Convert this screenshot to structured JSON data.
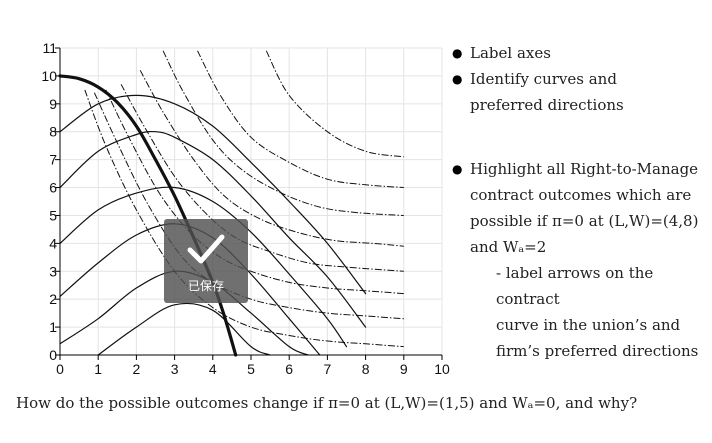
{
  "chart_data": {
    "type": "line",
    "title": "",
    "xlabel": "",
    "ylabel": "",
    "xlim": [
      0,
      10
    ],
    "ylim": [
      0,
      11
    ],
    "x_ticks": [
      0,
      1,
      2,
      3,
      4,
      5,
      6,
      7,
      8,
      9,
      10
    ],
    "y_ticks": [
      0,
      1,
      2,
      3,
      4,
      5,
      6,
      7,
      8,
      9,
      10,
      11
    ],
    "grid": true,
    "series": [
      {
        "style": "thick-solid",
        "points": [
          [
            0,
            10
          ],
          [
            0.5,
            9.9
          ],
          [
            1,
            9.6
          ],
          [
            1.5,
            9.05
          ],
          [
            2,
            8.2
          ],
          [
            2.5,
            7
          ],
          [
            3,
            5.7
          ],
          [
            3.5,
            4.2
          ],
          [
            4,
            2.6
          ],
          [
            4.3,
            1.4
          ],
          [
            4.6,
            0
          ]
        ]
      },
      {
        "style": "solid",
        "points": [
          [
            1,
            0
          ],
          [
            2,
            1
          ],
          [
            3,
            1.8
          ],
          [
            4,
            1.6
          ],
          [
            5,
            0.3
          ],
          [
            5.5,
            0
          ]
        ]
      },
      {
        "style": "solid",
        "points": [
          [
            0,
            0.4
          ],
          [
            1,
            1.3
          ],
          [
            2,
            2.4
          ],
          [
            3,
            3.0
          ],
          [
            4,
            2.6
          ],
          [
            5,
            1.5
          ],
          [
            6,
            0.3
          ],
          [
            6.5,
            0
          ]
        ]
      },
      {
        "style": "solid",
        "points": [
          [
            0,
            2.1
          ],
          [
            1,
            3.3
          ],
          [
            2,
            4.3
          ],
          [
            3,
            4.7
          ],
          [
            4,
            4.2
          ],
          [
            5,
            2.9
          ],
          [
            6,
            1.3
          ],
          [
            6.8,
            0
          ]
        ]
      },
      {
        "style": "solid",
        "points": [
          [
            0,
            4
          ],
          [
            1,
            5.2
          ],
          [
            2,
            5.8
          ],
          [
            3,
            6.0
          ],
          [
            4,
            5.5
          ],
          [
            5,
            4.4
          ],
          [
            6,
            2.9
          ],
          [
            7,
            1.3
          ],
          [
            7.5,
            0.3
          ]
        ]
      },
      {
        "style": "solid",
        "points": [
          [
            0,
            6
          ],
          [
            1,
            7.3
          ],
          [
            2,
            7.9
          ],
          [
            2.5,
            8.0
          ],
          [
            3,
            7.8
          ],
          [
            4,
            7.0
          ],
          [
            5,
            5.7
          ],
          [
            6,
            4.2
          ],
          [
            7,
            2.8
          ],
          [
            8,
            1.0
          ]
        ]
      },
      {
        "style": "solid",
        "points": [
          [
            0,
            8
          ],
          [
            1,
            9.0
          ],
          [
            2,
            9.3
          ],
          [
            3,
            9.0
          ],
          [
            4,
            8.2
          ],
          [
            5,
            6.9
          ],
          [
            6,
            5.5
          ],
          [
            7,
            4.0
          ],
          [
            8,
            2.2
          ]
        ]
      },
      {
        "style": "dash-dot",
        "points": [
          [
            0.65,
            9.5
          ],
          [
            1.2,
            7.5
          ],
          [
            2,
            5.2
          ],
          [
            3,
            3.0
          ],
          [
            4,
            1.7
          ],
          [
            5,
            1.0
          ],
          [
            6,
            0.7
          ],
          [
            7,
            0.5
          ],
          [
            8,
            0.4
          ],
          [
            9,
            0.3
          ]
        ]
      },
      {
        "style": "dash-dot",
        "points": [
          [
            0.9,
            9.4
          ],
          [
            1.5,
            7.6
          ],
          [
            2.3,
            5.4
          ],
          [
            3.2,
            3.5
          ],
          [
            4,
            2.6
          ],
          [
            5,
            2.0
          ],
          [
            6,
            1.7
          ],
          [
            7,
            1.5
          ],
          [
            8,
            1.4
          ],
          [
            9,
            1.3
          ]
        ]
      },
      {
        "style": "dash-dot",
        "points": [
          [
            1.2,
            9.5
          ],
          [
            1.8,
            7.8
          ],
          [
            2.6,
            5.8
          ],
          [
            3.4,
            4.4
          ],
          [
            4.2,
            3.5
          ],
          [
            5,
            3.0
          ],
          [
            6,
            2.6
          ],
          [
            7,
            2.4
          ],
          [
            8,
            2.3
          ],
          [
            9,
            2.2
          ]
        ]
      },
      {
        "style": "dash-dot",
        "points": [
          [
            1.6,
            9.7
          ],
          [
            2.2,
            8.2
          ],
          [
            3,
            6.4
          ],
          [
            3.8,
            5.1
          ],
          [
            4.6,
            4.2
          ],
          [
            5.5,
            3.7
          ],
          [
            6.5,
            3.3
          ],
          [
            7.5,
            3.15
          ],
          [
            9,
            3.0
          ]
        ]
      },
      {
        "style": "dash-dot",
        "points": [
          [
            2.1,
            10.2
          ],
          [
            2.7,
            8.7
          ],
          [
            3.5,
            7.0
          ],
          [
            4.3,
            5.7
          ],
          [
            5.2,
            4.9
          ],
          [
            6.2,
            4.4
          ],
          [
            7.2,
            4.1
          ],
          [
            8.2,
            4.0
          ],
          [
            9,
            3.9
          ]
        ]
      },
      {
        "style": "dash-dot",
        "points": [
          [
            2.7,
            10.9
          ],
          [
            3.2,
            9.5
          ],
          [
            4,
            7.7
          ],
          [
            4.8,
            6.6
          ],
          [
            5.8,
            5.8
          ],
          [
            6.8,
            5.3
          ],
          [
            7.8,
            5.1
          ],
          [
            9,
            5.0
          ]
        ]
      },
      {
        "style": "dash-dot",
        "points": [
          [
            3.6,
            10.9
          ],
          [
            4.2,
            9.3
          ],
          [
            5,
            7.8
          ],
          [
            6,
            6.9
          ],
          [
            7,
            6.3
          ],
          [
            8,
            6.1
          ],
          [
            9,
            6.0
          ]
        ]
      },
      {
        "style": "dash-dot",
        "points": [
          [
            5.4,
            10.9
          ],
          [
            6,
            9.3
          ],
          [
            7,
            8.0
          ],
          [
            8,
            7.3
          ],
          [
            9,
            7.1
          ]
        ]
      }
    ]
  },
  "bullets": {
    "b1": "Label axes",
    "b2_l1": "Identify curves and",
    "b2_l2": "preferred directions",
    "b3_l1": "Highlight all Right-to-Manage",
    "b3_l2": "contract outcomes which are",
    "b3_l3": "possible if π=0 at (L,W)=(4,8)",
    "b3_l4": "and Wₐ=2",
    "sub_l1": "- label arrows on the contract",
    "sub_l2": "curve in the union’s and",
    "sub_l3": "firm’s preferred directions"
  },
  "footer": {
    "question": "How do the possible outcomes change if π=0 at (L,W)=(1,5) and Wₐ=0, and why?"
  },
  "toast": {
    "icon": "check-icon",
    "label": "已保存"
  },
  "colors": {
    "grid": "#e4e4e4",
    "curves": "#111111",
    "toast_bg": "#555555"
  }
}
